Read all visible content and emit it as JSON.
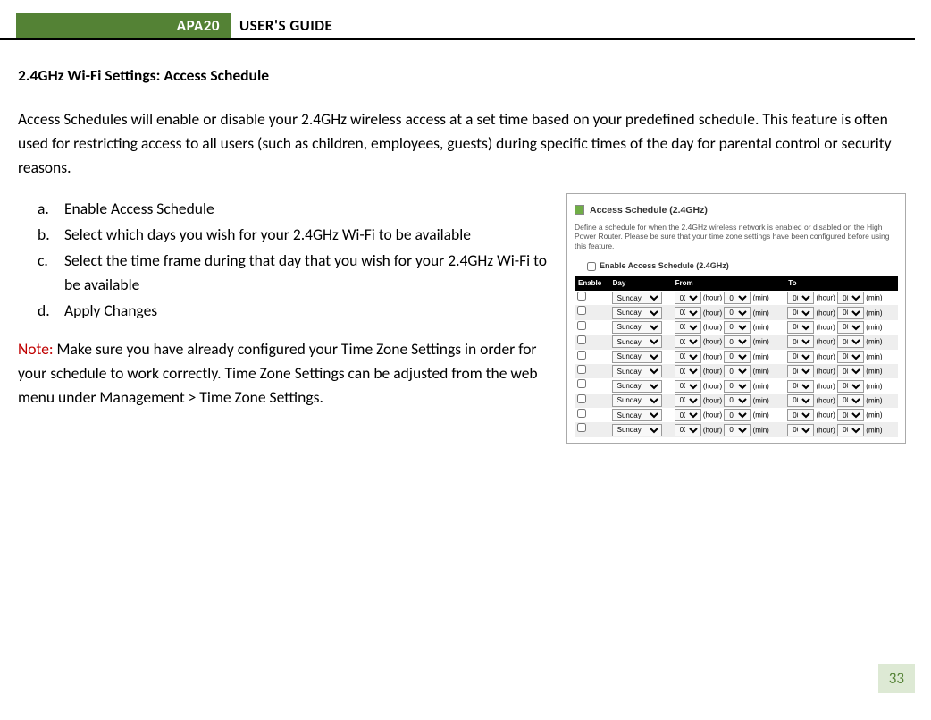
{
  "header": {
    "badge": "APA20",
    "title": "USER'S GUIDE"
  },
  "section_title": "2.4GHz Wi-Fi Settings: Access Schedule",
  "intro": "Access Schedules will enable or disable your 2.4GHz wireless access at a set time based on your predefined schedule. This feature is often used for restricting access to all users (such as children, employees, guests) during specific times of the day for parental control or security reasons.",
  "steps": [
    {
      "label": "a.",
      "text": "Enable Access Schedule"
    },
    {
      "label": "b.",
      "text": "Select which days you wish for your 2.4GHz Wi-Fi to be available"
    },
    {
      "label": "c.",
      "text": "Select the time frame during that day that you wish for your 2.4GHz Wi-Fi to be available"
    },
    {
      "label": "d.",
      "text": "Apply Changes"
    }
  ],
  "note_label": "Note:",
  "note_text": " Make sure you have already configured your Time Zone Settings in order for your schedule to work correctly. Time Zone Settings can be adjusted from the web menu under Management > Time Zone Settings.",
  "screenshot": {
    "title": "Access Schedule (2.4GHz)",
    "desc": "Define a schedule for when the 2.4GHz wireless network is enabled or disabled on the High Power Router. Please be sure that your time zone settings have been configured before using this feature.",
    "enable_label": "Enable Access Schedule (2.4GHz)",
    "columns": [
      "Enable",
      "Day",
      "From",
      "To"
    ],
    "day_value": "Sunday",
    "hour_value": "00",
    "min_value": "00",
    "hour_unit": "(hour)",
    "min_unit": "(min)",
    "row_count": 10
  },
  "page_number": "33",
  "colors": {
    "brand_green": "#548235",
    "page_num_bg": "#dde9d4",
    "note_red": "#c00000"
  }
}
